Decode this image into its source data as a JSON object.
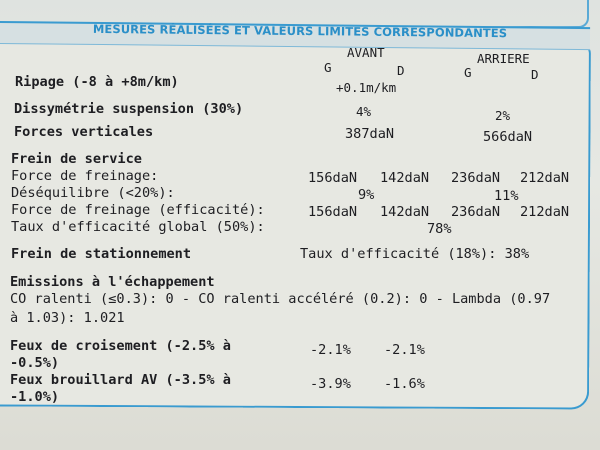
{
  "title": "MESURES RÉALISÉES ET VALEURS LIMITES CORRESPONDANTES",
  "columns": {
    "avant": "AVANT",
    "arriere": "ARRIERE",
    "g": "G",
    "d": "D"
  },
  "ripage": {
    "label": "Ripage (-8 à +8m/km)",
    "value": "+0.1m/km"
  },
  "dissymetrie": {
    "label": "Dissymétrie suspension (30%)",
    "avant": "4%",
    "arriere": "2%"
  },
  "forces_verticales": {
    "label": "Forces verticales",
    "avant": "387daN",
    "arriere": "566daN"
  },
  "frein_service": {
    "heading": "Frein de service",
    "force_label": "Force de freinage:",
    "force_values": [
      "156daN",
      "142daN",
      "236daN",
      "212daN"
    ],
    "desequilibre_label": "Déséquilibre (<20%):",
    "desequilibre_avant": "9%",
    "desequilibre_arriere": "11%",
    "force_eff_label": "Force de freinage (efficacité):",
    "force_eff_values": [
      "156daN",
      "142daN",
      "236daN",
      "212daN"
    ],
    "taux_label": "Taux d'efficacité global (50%):",
    "taux_value": "78%"
  },
  "frein_stationnement": {
    "heading": "Frein de stationnement",
    "text": "Taux d'efficacité (18%): 38%"
  },
  "emissions": {
    "heading": "Emissions à l'échappement",
    "line1": "CO ralenti (≤0.3): 0 - CO ralenti accéléré (0.2): 0 - Lambda (0.97",
    "line2": "à 1.03): 1.021"
  },
  "feux_croisement": {
    "label1": "Feux de croisement (-2.5% à",
    "label2": "-0.5%)",
    "g": "-2.1%",
    "d": "-2.1%"
  },
  "feux_brouillard": {
    "label1": "Feux brouillard AV (-3.5% à",
    "label2": "-1.0%)",
    "g": "-3.9%",
    "d": "-1.6%"
  },
  "colors": {
    "accent": "#2a8fc8"
  }
}
